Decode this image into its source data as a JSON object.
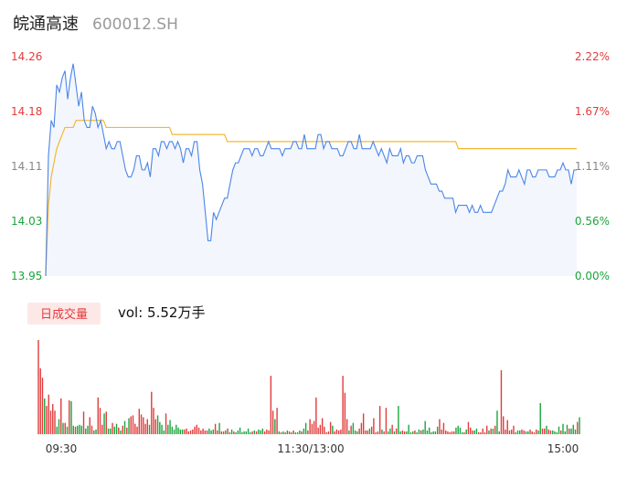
{
  "header": {
    "name": "皖通高速",
    "code": "600012.SH"
  },
  "colors": {
    "up": "#e23b3b",
    "down": "#1aa53c",
    "neutral": "#888888",
    "price_line": "#4a86e8",
    "avg_line": "#f5b731",
    "area_fill": "#f3f6fc",
    "badge_bg": "#fde8e8"
  },
  "chart_data": [
    {
      "type": "line",
      "name": "intraday-price",
      "ylim": [
        13.95,
        14.26
      ],
      "y_ticks_left": [
        "14.26",
        "14.18",
        "14.11",
        "14.03",
        "13.95"
      ],
      "y_ticks_right": [
        "2.22%",
        "1.67%",
        "1.11%",
        "0.56%",
        "0.00%"
      ],
      "x_ticks": [
        "09:30",
        "11:30/13:00",
        "15:00"
      ],
      "price": [
        13.95,
        14.12,
        14.17,
        14.16,
        14.22,
        14.21,
        14.23,
        14.24,
        14.2,
        14.23,
        14.25,
        14.22,
        14.19,
        14.21,
        14.17,
        14.16,
        14.16,
        14.19,
        14.18,
        14.16,
        14.17,
        14.15,
        14.13,
        14.14,
        14.13,
        14.13,
        14.14,
        14.14,
        14.12,
        14.1,
        14.09,
        14.09,
        14.1,
        14.12,
        14.12,
        14.1,
        14.1,
        14.11,
        14.09,
        14.13,
        14.13,
        14.12,
        14.14,
        14.14,
        14.13,
        14.14,
        14.14,
        14.13,
        14.14,
        14.13,
        14.11,
        14.13,
        14.13,
        14.12,
        14.14,
        14.14,
        14.1,
        14.08,
        14.04,
        14.0,
        14.0,
        14.04,
        14.03,
        14.04,
        14.05,
        14.06,
        14.06,
        14.08,
        14.1,
        14.11,
        14.11,
        14.12,
        14.13,
        14.13,
        14.13,
        14.12,
        14.13,
        14.13,
        14.12,
        14.12,
        14.13,
        14.14,
        14.13,
        14.13,
        14.13,
        14.13,
        14.12,
        14.13,
        14.13,
        14.13,
        14.14,
        14.14,
        14.13,
        14.13,
        14.15,
        14.13,
        14.13,
        14.13,
        14.13,
        14.15,
        14.15,
        14.13,
        14.14,
        14.14,
        14.13,
        14.13,
        14.13,
        14.12,
        14.12,
        14.13,
        14.14,
        14.14,
        14.13,
        14.13,
        14.15,
        14.13,
        14.13,
        14.13,
        14.13,
        14.14,
        14.13,
        14.12,
        14.13,
        14.12,
        14.11,
        14.13,
        14.12,
        14.12,
        14.12,
        14.13,
        14.11,
        14.12,
        14.12,
        14.11,
        14.11,
        14.12,
        14.12,
        14.12,
        14.1,
        14.09,
        14.08,
        14.08,
        14.08,
        14.07,
        14.07,
        14.06,
        14.06,
        14.06,
        14.06,
        14.04,
        14.05,
        14.05,
        14.05,
        14.05,
        14.04,
        14.05,
        14.04,
        14.04,
        14.05,
        14.04,
        14.04,
        14.04,
        14.04,
        14.05,
        14.06,
        14.07,
        14.07,
        14.08,
        14.1,
        14.09,
        14.09,
        14.09,
        14.1,
        14.09,
        14.08,
        14.1,
        14.1,
        14.09,
        14.09,
        14.1,
        14.1,
        14.1,
        14.1,
        14.09,
        14.09,
        14.09,
        14.1,
        14.1,
        14.11,
        14.1,
        14.1,
        14.08,
        14.1,
        14.1
      ],
      "avg": [
        13.95,
        14.05,
        14.09,
        14.11,
        14.13,
        14.14,
        14.15,
        14.16,
        14.16,
        14.16,
        14.16,
        14.17,
        14.17,
        14.17,
        14.17,
        14.17,
        14.17,
        14.17,
        14.17,
        14.17,
        14.17,
        14.17,
        14.16,
        14.16,
        14.16,
        14.16,
        14.16,
        14.16,
        14.16,
        14.16,
        14.16,
        14.16,
        14.16,
        14.16,
        14.16,
        14.16,
        14.16,
        14.16,
        14.16,
        14.16,
        14.16,
        14.16,
        14.16,
        14.16,
        14.16,
        14.16,
        14.15,
        14.15,
        14.15,
        14.15,
        14.15,
        14.15,
        14.15,
        14.15,
        14.15,
        14.15,
        14.15,
        14.15,
        14.15,
        14.15,
        14.15,
        14.15,
        14.15,
        14.15,
        14.15,
        14.15,
        14.14,
        14.14,
        14.14,
        14.14,
        14.14,
        14.14,
        14.14,
        14.14,
        14.14,
        14.14,
        14.14,
        14.14,
        14.14,
        14.14,
        14.14,
        14.14,
        14.14,
        14.14,
        14.14,
        14.14,
        14.14,
        14.14,
        14.14,
        14.14,
        14.14,
        14.14,
        14.14,
        14.14,
        14.14,
        14.14,
        14.14,
        14.14,
        14.14,
        14.14,
        14.14,
        14.14,
        14.14,
        14.14,
        14.14,
        14.14,
        14.14,
        14.14,
        14.14,
        14.14,
        14.14,
        14.14,
        14.14,
        14.14,
        14.14,
        14.14,
        14.14,
        14.14,
        14.14,
        14.14,
        14.14,
        14.14,
        14.14,
        14.14,
        14.14,
        14.14,
        14.14,
        14.14,
        14.14,
        14.14,
        14.14,
        14.14,
        14.14,
        14.14,
        14.14,
        14.14,
        14.14,
        14.14,
        14.14,
        14.14,
        14.14,
        14.14,
        14.14,
        14.14,
        14.14,
        14.14,
        14.14,
        14.14,
        14.14,
        14.14,
        14.13,
        14.13,
        14.13,
        14.13,
        14.13,
        14.13,
        14.13,
        14.13,
        14.13,
        14.13,
        14.13,
        14.13,
        14.13,
        14.13,
        14.13,
        14.13,
        14.13,
        14.13,
        14.13,
        14.13,
        14.13,
        14.13,
        14.13,
        14.13,
        14.13,
        14.13,
        14.13,
        14.13,
        14.13,
        14.13,
        14.13,
        14.13,
        14.13,
        14.13,
        14.13,
        14.13,
        14.13,
        14.13,
        14.13,
        14.13,
        14.13,
        14.13,
        14.13,
        14.13
      ]
    },
    {
      "type": "bar",
      "name": "volume",
      "badge": "日成交量",
      "vol_text": "vol: 5.52万手",
      "values": [
        100,
        70,
        60,
        38,
        30,
        42,
        25,
        32,
        25,
        8,
        16,
        38,
        12,
        12,
        8,
        36,
        35,
        9,
        8,
        9,
        10,
        9,
        24,
        6,
        9,
        18,
        9,
        4,
        5,
        39,
        28,
        10,
        22,
        24,
        6,
        6,
        12,
        8,
        11,
        7,
        4,
        9,
        14,
        7,
        17,
        19,
        20,
        11,
        8,
        27,
        21,
        18,
        11,
        16,
        10,
        45,
        28,
        16,
        20,
        13,
        10,
        4,
        22,
        10,
        15,
        8,
        5,
        10,
        7,
        5,
        5,
        5,
        6,
        3,
        4,
        5,
        8,
        10,
        7,
        4,
        6,
        4,
        4,
        6,
        4,
        5,
        11,
        4,
        12,
        3,
        3,
        4,
        6,
        2,
        5,
        3,
        2,
        4,
        7,
        2,
        3,
        3,
        6,
        2,
        3,
        4,
        3,
        5,
        4,
        6,
        3,
        5,
        4,
        62,
        25,
        16,
        28,
        3,
        2,
        3,
        2,
        4,
        3,
        2,
        4,
        2,
        2,
        4,
        3,
        6,
        12,
        4,
        16,
        11,
        14,
        39,
        7,
        10,
        17,
        8,
        2,
        3,
        13,
        9,
        3,
        5,
        4,
        5,
        62,
        44,
        16,
        4,
        9,
        12,
        4,
        3,
        6,
        12,
        22,
        4,
        4,
        6,
        8,
        17,
        2,
        3,
        30,
        5,
        3,
        28,
        3,
        6,
        10,
        3,
        6,
        30,
        3,
        4,
        3,
        3,
        10,
        2,
        3,
        4,
        2,
        5,
        4,
        5,
        14,
        4,
        7,
        2,
        3,
        3,
        8,
        16,
        5,
        12,
        4,
        3,
        2,
        3,
        3,
        7,
        9,
        7,
        2,
        2,
        5,
        13,
        7,
        4,
        4,
        6,
        2,
        2,
        6,
        2,
        9,
        4,
        6,
        6,
        9,
        25,
        3,
        68,
        19,
        5,
        15,
        4,
        5,
        9,
        2,
        4,
        4,
        5,
        4,
        3,
        3,
        5,
        3,
        2,
        5,
        4,
        33,
        6,
        6,
        9,
        5,
        4,
        4,
        3,
        2,
        8,
        4,
        11,
        3,
        10,
        6,
        6,
        10,
        5,
        13,
        18
      ],
      "directions": [
        "u",
        "u",
        "u",
        "d",
        "u",
        "u",
        "u",
        "u",
        "u",
        "d",
        "d",
        "u",
        "d",
        "u",
        "d",
        "u",
        "d",
        "d",
        "u",
        "d",
        "d",
        "d",
        "u",
        "d",
        "d",
        "u",
        "u",
        "d",
        "d",
        "u",
        "u",
        "u",
        "d",
        "u",
        "d",
        "d",
        "u",
        "d",
        "d",
        "u",
        "d",
        "u",
        "d",
        "u",
        "d",
        "u",
        "u",
        "u",
        "u",
        "u",
        "u",
        "u",
        "u",
        "u",
        "d",
        "u",
        "u",
        "u",
        "d",
        "d",
        "d",
        "d",
        "u",
        "d",
        "d",
        "d",
        "d",
        "d",
        "d",
        "d",
        "d",
        "u",
        "u",
        "u",
        "u",
        "u",
        "u",
        "u",
        "u",
        "u",
        "u",
        "u",
        "u",
        "d",
        "d",
        "d",
        "u",
        "u",
        "d",
        "u",
        "u",
        "d",
        "u",
        "d",
        "d",
        "u",
        "d",
        "d",
        "d",
        "d",
        "d",
        "d",
        "d",
        "d",
        "u",
        "d",
        "u",
        "d",
        "d",
        "d",
        "u",
        "u",
        "u",
        "u",
        "u",
        "d",
        "u",
        "d",
        "u",
        "d",
        "u",
        "d",
        "u",
        "d",
        "u",
        "d",
        "d",
        "d",
        "u",
        "d",
        "d",
        "u",
        "u",
        "u",
        "u",
        "u",
        "u",
        "u",
        "u",
        "u",
        "u",
        "u",
        "u",
        "d",
        "u",
        "u",
        "u",
        "u",
        "u",
        "u",
        "u",
        "d",
        "u",
        "d",
        "d",
        "d",
        "u",
        "u",
        "u",
        "u",
        "u",
        "d",
        "u",
        "u",
        "u",
        "u",
        "u",
        "d",
        "u",
        "u",
        "d",
        "d",
        "u",
        "d",
        "u",
        "d",
        "d",
        "u",
        "u",
        "d",
        "d",
        "d",
        "d",
        "u",
        "d",
        "d",
        "u",
        "d",
        "d",
        "d",
        "d",
        "d",
        "d",
        "d",
        "d",
        "u",
        "u",
        "u",
        "u",
        "u",
        "u",
        "u",
        "u",
        "d",
        "d",
        "d",
        "d",
        "u",
        "d",
        "u",
        "u",
        "u",
        "d",
        "d",
        "u",
        "u",
        "u",
        "u",
        "u",
        "d",
        "u",
        "d",
        "u",
        "d",
        "d",
        "u",
        "u",
        "u",
        "u",
        "u",
        "u",
        "u",
        "d",
        "d",
        "d",
        "u",
        "u",
        "d",
        "d",
        "u",
        "u",
        "u",
        "u",
        "d",
        "d",
        "u",
        "u",
        "d",
        "u",
        "u",
        "d",
        "d",
        "d",
        "d",
        "u",
        "d",
        "d",
        "d",
        "u",
        "d",
        "d",
        "d",
        "u",
        "d",
        "d",
        "d",
        "u",
        "d",
        "d",
        "d",
        "d",
        "u",
        "u",
        "u",
        "n"
      ]
    }
  ]
}
